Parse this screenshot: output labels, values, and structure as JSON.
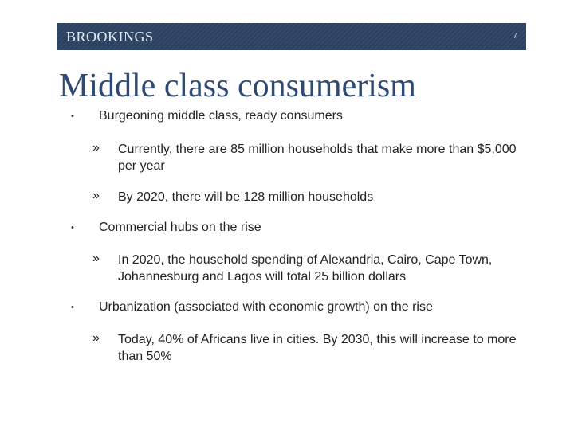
{
  "header": {
    "logo": "BROOKINGS",
    "page_number": "7"
  },
  "slide": {
    "title": "Middle class consumerism",
    "bullet_symbol": "•",
    "sub_symbol": "»",
    "bullets": [
      {
        "text": "Burgeoning middle class, ready consumers",
        "subs": [
          "Currently, there are 85 million households that make more than $5,000 per year",
          "By 2020, there will be 128 million households"
        ]
      },
      {
        "text": "Commercial hubs on the rise",
        "subs": [
          "In 2020, the household spending of Alexandria, Cairo, Cape Town, Johannesburg and Lagos will total 25 billion dollars"
        ]
      },
      {
        "text": "Urbanization (associated with economic growth) on the rise",
        "subs": [
          "Today, 40% of Africans live in cities. By 2030, this will increase to more than 50%"
        ]
      }
    ]
  }
}
